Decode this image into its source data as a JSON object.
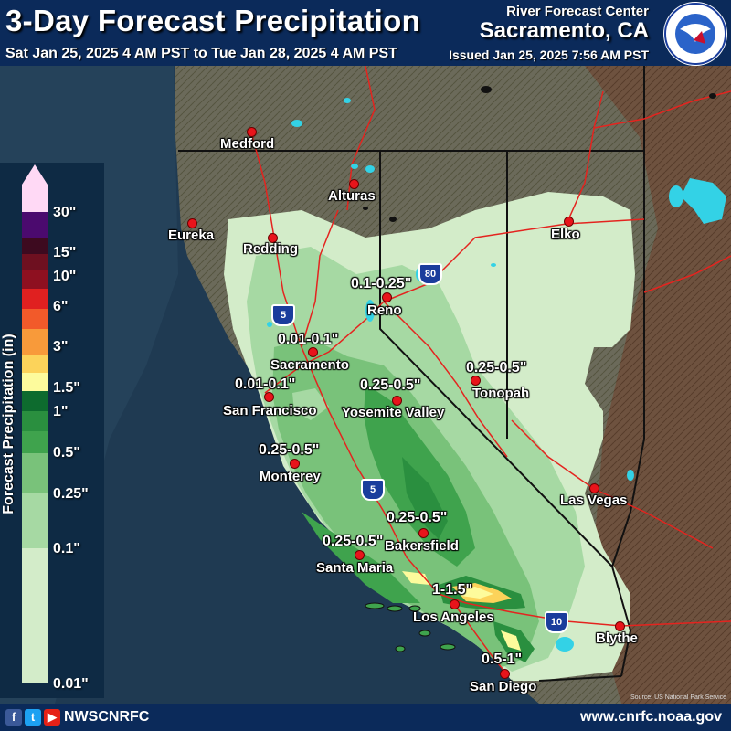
{
  "header": {
    "title": "3-Day Forecast Precipitation",
    "subtitle": "Sat Jan 25, 2025 4 AM PST to Tue Jan 28, 2025 4 AM PST",
    "org": "River Forecast Center",
    "location": "Sacramento, CA",
    "issued": "Issued Jan 25, 2025 7:56 AM PST"
  },
  "logo": {
    "icon": "nws-logo-icon"
  },
  "legend": {
    "title": "Forecast Precipitation (in)",
    "ticks": [
      "30\"",
      "15\"",
      "10\"",
      "6\"",
      "3\"",
      "1.5\"",
      "1\"",
      "0.5\"",
      "0.25\"",
      "0.1\"",
      "0.01\""
    ],
    "colors": {
      "over_30": "#ffd9f5",
      "15_30": "#4b0a6e",
      "10_15": "#3d0a1f",
      "8_10": "#6e1020",
      "6_8": "#b01520",
      "4_6": "#e02020",
      "3_4": "#f25a2a",
      "2_3": "#f89a3a",
      "1.5_2": "#fcd35a",
      "1.25_1.5": "#fdfb9c",
      "1_1.25": "#0d6b2e",
      "0.75_1": "#2a8f3f",
      "0.5_0.75": "#3fa34d",
      "0.25_0.5": "#79c27a",
      "0.1_0.25": "#a6d9a3",
      "0.01_0.1": "#d3ecc9"
    }
  },
  "cities": [
    {
      "name": "Medford"
    },
    {
      "name": "Alturas"
    },
    {
      "name": "Eureka"
    },
    {
      "name": "Redding"
    },
    {
      "name": "Elko"
    },
    {
      "name": "Reno"
    },
    {
      "name": "Sacramento"
    },
    {
      "name": "San Francisco"
    },
    {
      "name": "Yosemite Valley"
    },
    {
      "name": "Tonopah"
    },
    {
      "name": "Monterey"
    },
    {
      "name": "Las Vegas"
    },
    {
      "name": "Bakersfield"
    },
    {
      "name": "Santa Maria"
    },
    {
      "name": "Los Angeles"
    },
    {
      "name": "Blythe"
    },
    {
      "name": "San Diego"
    }
  ],
  "amounts": [
    "0.1-0.25\"",
    "0.01-0.1\"",
    "0.01-0.1\"",
    "0.25-0.5\"",
    "0.25-0.5\"",
    "0.25-0.5\"",
    "0.25-0.5\"",
    "0.25-0.5\"",
    "1-1.5\"",
    "0.5-1\""
  ],
  "highways": [
    "5",
    "80",
    "5",
    "10"
  ],
  "credit": "Source: US National Park Service",
  "footer": {
    "social_icons": [
      "facebook-icon",
      "twitter-icon",
      "youtube-icon"
    ],
    "handle": "NWSCNRFC",
    "url": "www.cnrfc.noaa.gov"
  },
  "colors": {
    "ocean": "#1f3a52",
    "terrain": "#6e6a58",
    "rivers_lakes": "#33d2e6",
    "highways": "#e4241f",
    "borders": "#111111",
    "header_bg": "#0b2a5a"
  }
}
